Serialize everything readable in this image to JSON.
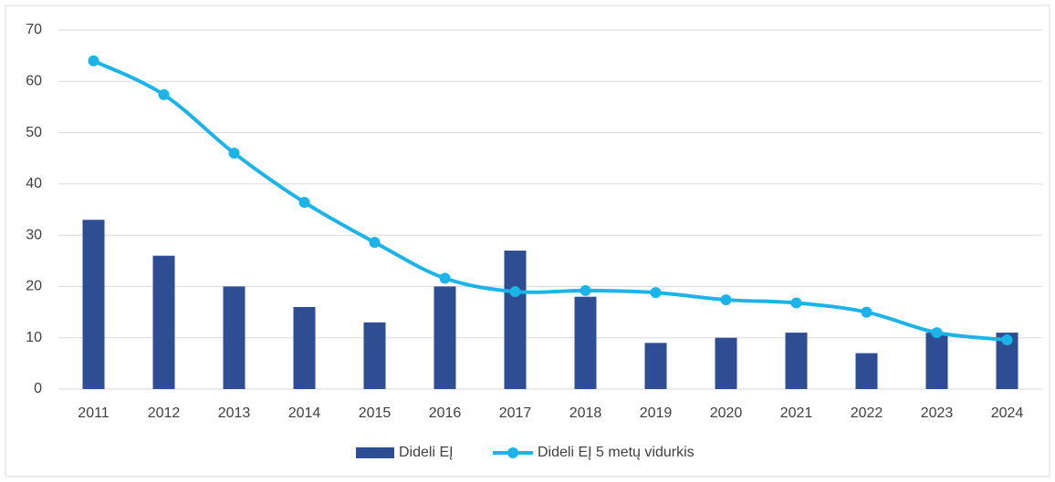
{
  "chart_data": {
    "type": "bar-line",
    "categories": [
      "2011",
      "2012",
      "2013",
      "2014",
      "2015",
      "2016",
      "2017",
      "2018",
      "2019",
      "2020",
      "2021",
      "2022",
      "2023",
      "2024"
    ],
    "series": [
      {
        "name": "Dideli EĮ",
        "type": "bar",
        "color": "#2e4d93",
        "values": [
          33,
          26,
          20,
          16,
          13,
          20,
          27,
          18,
          9,
          10,
          11,
          7,
          11,
          11
        ]
      },
      {
        "name": "Dideli EĮ 5 metų vidurkis",
        "type": "line",
        "color": "#1ab4e8",
        "values": [
          64,
          57.4,
          46,
          36.4,
          28.6,
          21.6,
          19,
          19.2,
          18.8,
          17.4,
          16.8,
          15,
          11,
          9.6
        ]
      }
    ],
    "ylim": [
      0,
      70
    ],
    "yticks": [
      0,
      10,
      20,
      30,
      40,
      50,
      60,
      70
    ],
    "grid": true,
    "legend": "bottom"
  }
}
